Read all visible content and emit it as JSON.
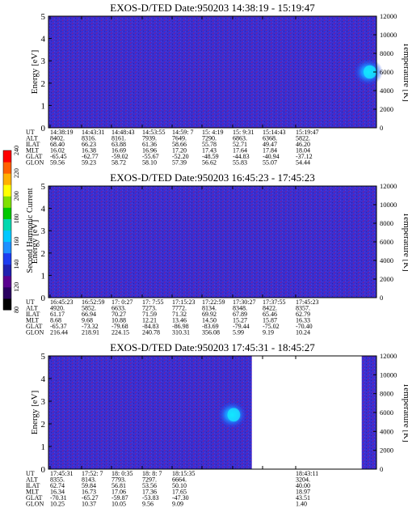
{
  "colorbar": {
    "label": "Second Harmonic Current",
    "ticks": [
      "80",
      "120",
      "140",
      "160",
      "180",
      "200",
      "220",
      "240"
    ],
    "colors": [
      "#000000",
      "#2a0060",
      "#5a0090",
      "#2020b0",
      "#1c3cf0",
      "#1e90ff",
      "#00c8ff",
      "#00d8b0",
      "#00c800",
      "#80e000",
      "#ffff00",
      "#ffb000",
      "#ff6000",
      "#ff0000"
    ]
  },
  "chart_data": [
    {
      "type": "heatmap",
      "title": "EXOS-D/TED  Date:950203  14:38:19 - 15:19:47",
      "ylabel": "Energy [eV]",
      "ylabel_right": "Temperature [K]",
      "ylim": [
        0,
        5
      ],
      "yticks": [
        "0",
        "1",
        "2",
        "3",
        "4",
        "5"
      ],
      "ylim_right": [
        0,
        12000
      ],
      "yticks_right": [
        "0",
        "2000",
        "4000",
        "6000",
        "8000",
        "10000",
        "12000"
      ],
      "data_end_fraction": 1.0,
      "features": [
        {
          "x_frac": 0.975,
          "y": 2.5,
          "kind": "temperature-blob"
        }
      ],
      "table_rows": [
        {
          "label": "UT",
          "values": [
            "14:38:19",
            "14:43:31",
            "14:48:43",
            "14:53:55",
            "14:59: 7",
            "15: 4:19",
            "15: 9:31",
            "15:14:43",
            "15:19:47"
          ]
        },
        {
          "label": "ALT",
          "values": [
            "8402.",
            "8316.",
            "8161.",
            "7939.",
            "7649.",
            "7290.",
            "6863.",
            "6368.",
            "5822."
          ]
        },
        {
          "label": "ILAT",
          "values": [
            "68.40",
            "66.23",
            "63.88",
            "61.36",
            "58.66",
            "55.78",
            "52.71",
            "49.47",
            "46.20"
          ]
        },
        {
          "label": "MLT",
          "values": [
            "16.02",
            "16.38",
            "16.69",
            "16.96",
            "17.20",
            "17.43",
            "17.64",
            "17.84",
            "18.04"
          ]
        },
        {
          "label": "GLAT",
          "values": [
            "-65.45",
            "-62.77",
            "-59.02",
            "-55.67",
            "-52.20",
            "-48.59",
            "-44.83",
            "-40.94",
            "-37.12"
          ]
        },
        {
          "label": "GLON",
          "values": [
            "59.56",
            "59.23",
            "58.72",
            "58.10",
            "57.39",
            "56.62",
            "55.83",
            "55.07",
            "54.44"
          ]
        }
      ]
    },
    {
      "type": "heatmap",
      "title": "EXOS-D/TED  Date:950203  16:45:23 - 17:45:23",
      "ylabel": "Energy [eV]",
      "ylabel_right": "Temperature [K]",
      "ylim": [
        0,
        5
      ],
      "yticks": [
        "0",
        "1",
        "2",
        "3",
        "4",
        "5"
      ],
      "ylim_right": [
        0,
        12000
      ],
      "yticks_right": [
        "0",
        "2000",
        "4000",
        "6000",
        "8000",
        "10000",
        "12000"
      ],
      "data_end_fraction": 1.0,
      "features": [],
      "table_rows": [
        {
          "label": "UT",
          "values": [
            "16:45:23",
            "16:52:59",
            "17: 0:27",
            "17: 7:55",
            "17:15:23",
            "17:22:59",
            "17:30:27",
            "17:37:55",
            "17:45:23"
          ]
        },
        {
          "label": "ALT",
          "values": [
            "4920.",
            "5852.",
            "6633.",
            "7273.",
            "7772.",
            "8134.",
            "8348.",
            "8422.",
            "8357."
          ]
        },
        {
          "label": "ILAT",
          "values": [
            "61.17",
            "66.94",
            "70.27",
            "71.59",
            "71.32",
            "69.92",
            "67.89",
            "65.46",
            "62.79"
          ]
        },
        {
          "label": "MLT",
          "values": [
            "8.68",
            "9.68",
            "10.88",
            "12.21",
            "13.46",
            "14.50",
            "15.27",
            "15.87",
            "16.33"
          ]
        },
        {
          "label": "GLAT",
          "values": [
            "-65.37",
            "-73.32",
            "-79.68",
            "-84.83",
            "-86.98",
            "-83.69",
            "-79.44",
            "-75.02",
            "-70.40"
          ]
        },
        {
          "label": "GLON",
          "values": [
            "216.44",
            "218.91",
            "224.15",
            "240.78",
            "310.31",
            "356.08",
            "5.99",
            "9.19",
            "10.24"
          ]
        }
      ]
    },
    {
      "type": "heatmap",
      "title": "EXOS-D/TED  Date:950203  17:45:31 - 18:45:27",
      "ylabel": "Energy [eV]",
      "ylabel_right": "Temperature [K]",
      "ylim": [
        0,
        5
      ],
      "yticks": [
        "0",
        "1",
        "2",
        "3",
        "4",
        "5"
      ],
      "ylim_right": [
        0,
        12000
      ],
      "yticks_right": [
        "0",
        "2000",
        "4000",
        "6000",
        "8000",
        "10000",
        "12000"
      ],
      "data_end_fraction": 0.62,
      "features": [
        {
          "x_frac": 0.56,
          "y": 2.4,
          "kind": "temperature-blob"
        }
      ],
      "table_rows": [
        {
          "label": "UT",
          "values": [
            "17:45:31",
            "17:52: 7",
            "18: 0:35",
            "18: 8: 7",
            "18:15:35",
            "",
            "",
            "",
            "18:43:11"
          ]
        },
        {
          "label": "ALT",
          "values": [
            "8355.",
            "8143.",
            "7793.",
            "7297.",
            "6664.",
            "",
            "",
            "",
            "3204."
          ]
        },
        {
          "label": "ILAT",
          "values": [
            "62.74",
            "59.84",
            "56.81",
            "53.56",
            "50.10",
            "",
            "",
            "",
            "40.00"
          ]
        },
        {
          "label": "MLT",
          "values": [
            "16.34",
            "16.73",
            "17.06",
            "17.36",
            "17.65",
            "",
            "",
            "",
            "18.97"
          ]
        },
        {
          "label": "GLAT",
          "values": [
            "-70.31",
            "-65.27",
            "-59.87",
            "-53.83",
            "-47.30",
            "",
            "",
            "",
            "43.51"
          ]
        },
        {
          "label": "GLON",
          "values": [
            "10.25",
            "10.37",
            "10.05",
            "9.56",
            "9.09",
            "",
            "",
            "",
            "1.40"
          ]
        }
      ]
    }
  ]
}
